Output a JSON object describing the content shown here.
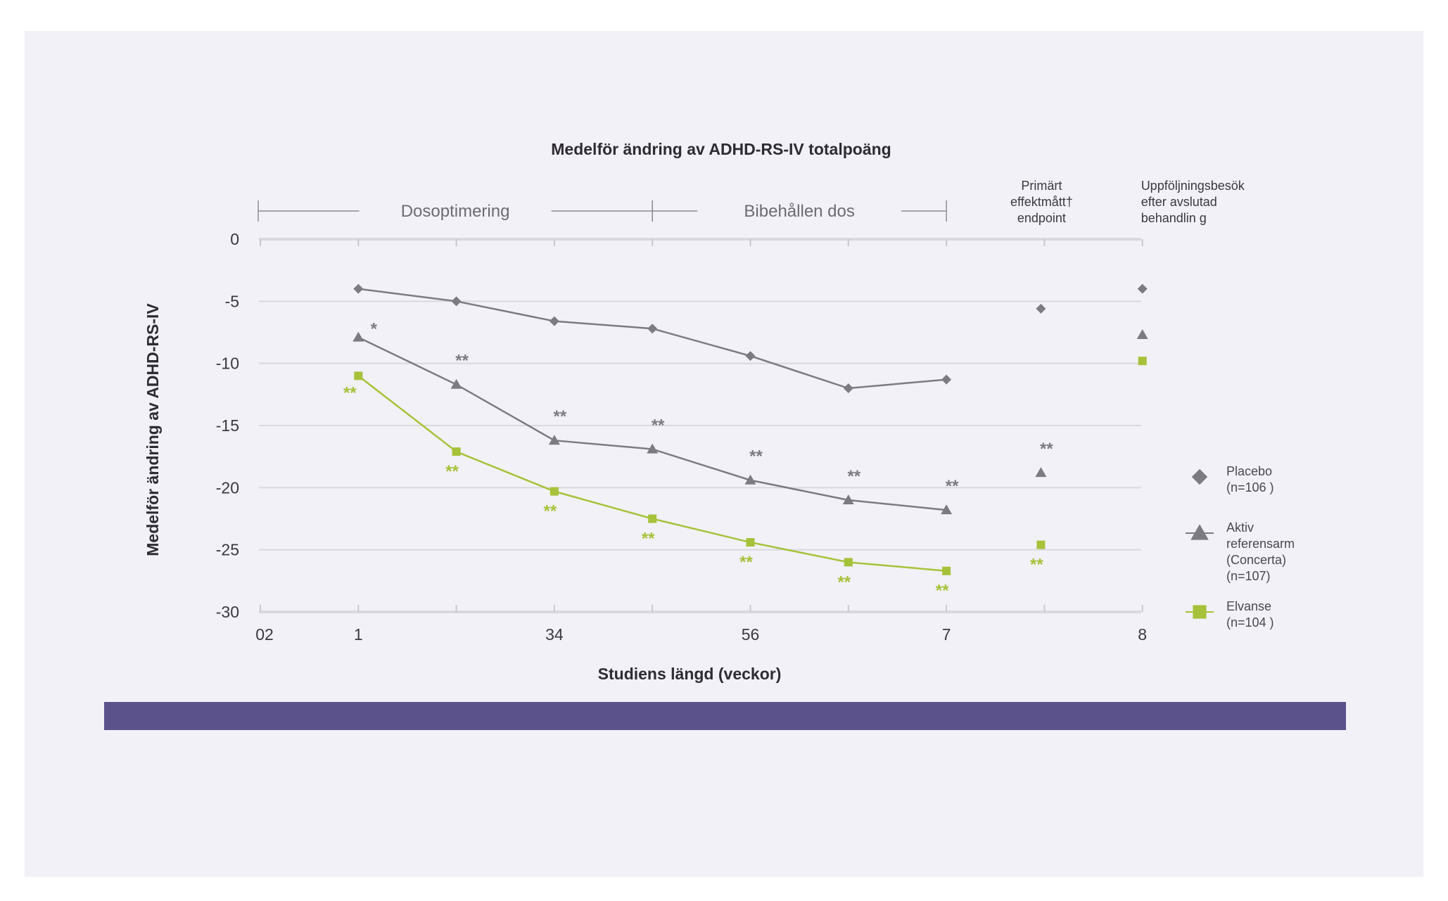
{
  "chart_data": {
    "type": "line",
    "title": "Medelför ändring av ADHD-RS-IV totalpoäng",
    "xlabel": "Studiens längd (veckor)",
    "ylabel": "Medelför ändring av ADHD-RS-IV",
    "ylim": [
      -30,
      0
    ],
    "yticks": [
      0,
      -5,
      -10,
      -15,
      -20,
      -25,
      -30
    ],
    "ytick_labels": [
      "0",
      "-5",
      "-10",
      "-15",
      "-20",
      "-25",
      "-30"
    ],
    "xticks": [
      0,
      1,
      2,
      3,
      4,
      5,
      6,
      7,
      8,
      9
    ],
    "xtick_labels": [
      {
        "x": 0,
        "text": "02"
      },
      {
        "x": 1,
        "text": "1"
      },
      {
        "x": 3,
        "text": "34"
      },
      {
        "x": 5,
        "text": "56"
      },
      {
        "x": 7,
        "text": "7"
      },
      {
        "x": 9,
        "text": "8"
      }
    ],
    "phases": [
      {
        "label": "Dosoptimering",
        "x_start": 0,
        "x_end": 4
      },
      {
        "label": "Bibehållen dos",
        "x_start": 4,
        "x_end": 7
      }
    ],
    "column_notes": [
      {
        "x": 8,
        "lines": [
          "Primärt",
          "effektmått†",
          "endpoint"
        ]
      },
      {
        "x": 9,
        "lines": [
          "Uppföljningsbesök",
          "efter avslutad",
          "behandlin g"
        ]
      }
    ],
    "series": [
      {
        "name": "Placebo",
        "n": "(n=106 )",
        "marker": "diamond",
        "color": "#7d7b82",
        "x": [
          1,
          2,
          3,
          4,
          5,
          6,
          7
        ],
        "values": [
          -4.0,
          -5.0,
          -6.6,
          -7.2,
          -9.4,
          -12.0,
          -11.3
        ],
        "extra_points": [
          {
            "x": 8,
            "value": -5.6
          },
          {
            "x": 9,
            "value": -4.0
          }
        ],
        "significance": []
      },
      {
        "name": "Aktiv referensarm (Concerta)",
        "legend_lines": [
          "Aktiv",
          "referensarm",
          "(Concerta)"
        ],
        "n": "(n=107)",
        "marker": "triangle",
        "color": "#7d7b82",
        "x": [
          1,
          2,
          3,
          4,
          5,
          6,
          7
        ],
        "values": [
          -7.9,
          -11.7,
          -16.2,
          -16.9,
          -19.4,
          -21.0,
          -21.8
        ],
        "extra_points": [
          {
            "x": 8,
            "value": -18.8
          },
          {
            "x": 9,
            "value": -7.7
          }
        ],
        "significance": [
          {
            "x": 1,
            "text": "*"
          },
          {
            "x": 2,
            "text": "**"
          },
          {
            "x": 3,
            "text": "**"
          },
          {
            "x": 4,
            "text": "**"
          },
          {
            "x": 5,
            "text": "**"
          },
          {
            "x": 6,
            "text": "**"
          },
          {
            "x": 7,
            "text": "**"
          },
          {
            "x": 8,
            "text": "**"
          }
        ]
      },
      {
        "name": "Elvanse",
        "n": "(n=104 )",
        "marker": "square",
        "color": "#a6c23a",
        "x": [
          1,
          2,
          3,
          4,
          5,
          6,
          7
        ],
        "values": [
          -11.0,
          -17.1,
          -20.3,
          -22.5,
          -24.4,
          -26.0,
          -26.7
        ],
        "extra_points": [
          {
            "x": 8,
            "value": -24.6
          },
          {
            "x": 9,
            "value": -9.8
          }
        ],
        "significance": [
          {
            "x": 1,
            "text": "**"
          },
          {
            "x": 2,
            "text": "**"
          },
          {
            "x": 3,
            "text": "**"
          },
          {
            "x": 4,
            "text": "**"
          },
          {
            "x": 5,
            "text": "**"
          },
          {
            "x": 6,
            "text": "**"
          },
          {
            "x": 7,
            "text": "**"
          },
          {
            "x": 8,
            "text": "**"
          }
        ]
      }
    ]
  }
}
